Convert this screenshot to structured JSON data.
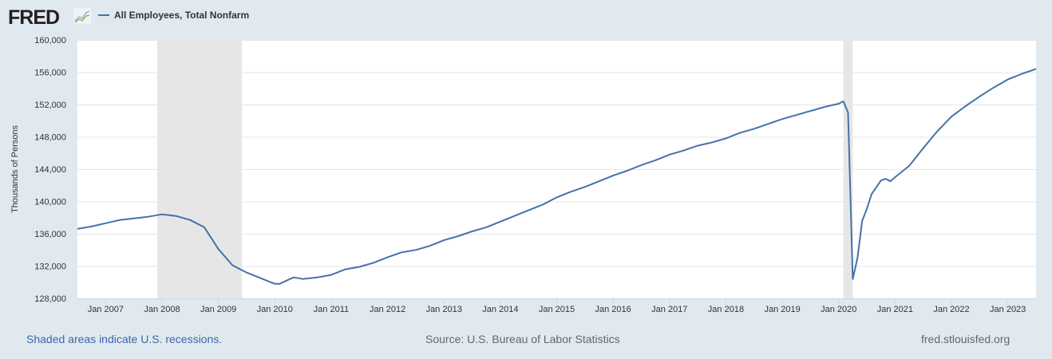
{
  "header": {
    "logo": "FRED",
    "legend_label": "All Employees, Total Nonfarm",
    "series_color": "#4572a7"
  },
  "footer": {
    "recession_note": "Shaded areas indicate U.S. recessions.",
    "source": "Source: U.S. Bureau of Labor Statistics",
    "site": "fred.stlouisfed.org"
  },
  "chart_data": {
    "type": "line",
    "title": "",
    "ylabel": "Thousands of Persons",
    "xlabel": "",
    "ylim": [
      128000,
      160000
    ],
    "xlim": [
      "2006-07",
      "2023-07"
    ],
    "grid": true,
    "legend_placement": "top-left",
    "yticks": [
      128000,
      132000,
      136000,
      140000,
      144000,
      148000,
      152000,
      156000,
      160000
    ],
    "ytick_labels": [
      "128,000",
      "132,000",
      "136,000",
      "140,000",
      "144,000",
      "148,000",
      "152,000",
      "156,000",
      "160,000"
    ],
    "xticks": [
      "2007-01",
      "2008-01",
      "2009-01",
      "2010-01",
      "2011-01",
      "2012-01",
      "2013-01",
      "2014-01",
      "2015-01",
      "2016-01",
      "2017-01",
      "2018-01",
      "2019-01",
      "2020-01",
      "2021-01",
      "2022-01",
      "2023-01"
    ],
    "xtick_labels": [
      "Jan 2007",
      "Jan 2008",
      "Jan 2009",
      "Jan 2010",
      "Jan 2011",
      "Jan 2012",
      "Jan 2013",
      "Jan 2014",
      "Jan 2015",
      "Jan 2016",
      "Jan 2017",
      "Jan 2018",
      "Jan 2019",
      "Jan 2020",
      "Jan 2021",
      "Jan 2022",
      "Jan 2023"
    ],
    "recessions": [
      [
        "2007-12",
        "2009-06"
      ],
      [
        "2020-02",
        "2020-04"
      ]
    ],
    "recession_color": "#e6e6e6",
    "series": [
      {
        "name": "All Employees, Total Nonfarm",
        "color": "#4572a7",
        "x": [
          "2006-07",
          "2006-10",
          "2007-01",
          "2007-04",
          "2007-07",
          "2007-10",
          "2008-01",
          "2008-04",
          "2008-07",
          "2008-10",
          "2009-01",
          "2009-04",
          "2009-07",
          "2009-10",
          "2010-01",
          "2010-02",
          "2010-05",
          "2010-07",
          "2010-10",
          "2011-01",
          "2011-04",
          "2011-07",
          "2011-10",
          "2012-01",
          "2012-04",
          "2012-07",
          "2012-10",
          "2013-01",
          "2013-04",
          "2013-07",
          "2013-10",
          "2014-01",
          "2014-04",
          "2014-07",
          "2014-10",
          "2015-01",
          "2015-04",
          "2015-07",
          "2015-10",
          "2016-01",
          "2016-04",
          "2016-07",
          "2016-10",
          "2017-01",
          "2017-04",
          "2017-07",
          "2017-10",
          "2018-01",
          "2018-04",
          "2018-07",
          "2018-10",
          "2019-01",
          "2019-04",
          "2019-07",
          "2019-10",
          "2020-01",
          "2020-02",
          "2020-03",
          "2020-04",
          "2020-05",
          "2020-06",
          "2020-07",
          "2020-08",
          "2020-10",
          "2020-11",
          "2020-12",
          "2021-01",
          "2021-04",
          "2021-07",
          "2021-10",
          "2022-01",
          "2022-04",
          "2022-07",
          "2022-10",
          "2023-01",
          "2023-04",
          "2023-07"
        ],
        "values": [
          136600,
          136900,
          137300,
          137700,
          137900,
          138100,
          138400,
          138200,
          137700,
          136800,
          134100,
          132100,
          131200,
          130500,
          129800,
          129800,
          130600,
          130400,
          130600,
          130900,
          131600,
          131900,
          132400,
          133100,
          133700,
          134000,
          134500,
          135200,
          135700,
          136300,
          136800,
          137500,
          138200,
          138900,
          139600,
          140500,
          141200,
          141800,
          142500,
          143200,
          143800,
          144500,
          145100,
          145800,
          146300,
          146900,
          147300,
          147800,
          148500,
          149000,
          149600,
          150200,
          150700,
          151200,
          151700,
          152100,
          152400,
          151000,
          130400,
          133000,
          137600,
          139100,
          140900,
          142600,
          142800,
          142500,
          143000,
          144400,
          146600,
          148700,
          150500,
          151800,
          153000,
          154100,
          155100,
          155800,
          156400
        ]
      }
    ]
  }
}
